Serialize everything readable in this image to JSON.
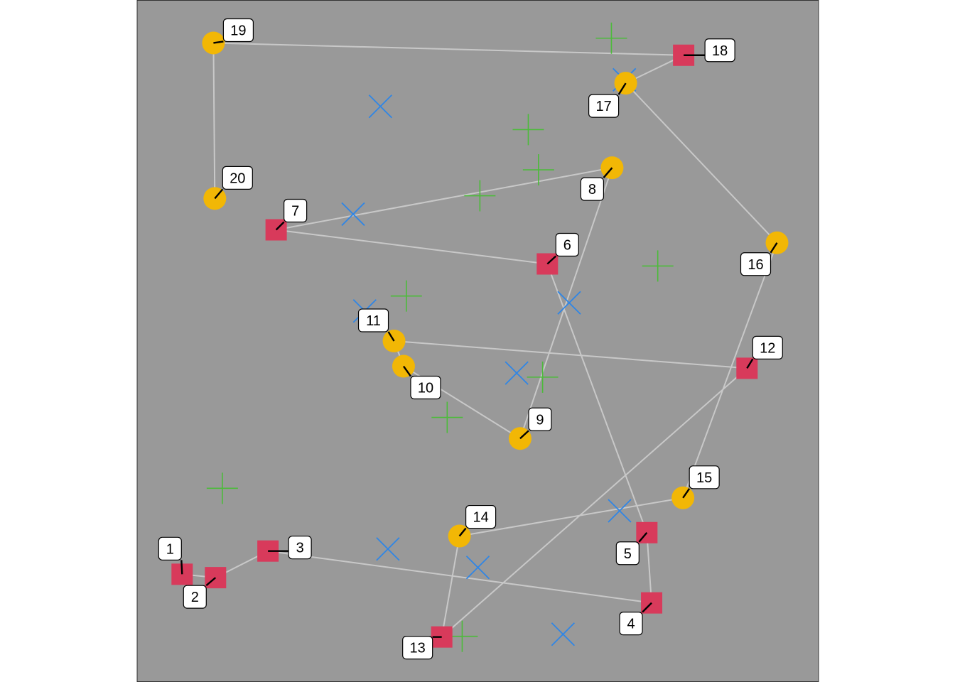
{
  "chart_data": {
    "type": "scatter",
    "title": "",
    "xlabel": "",
    "ylabel": "",
    "xlim": [
      0,
      1
    ],
    "ylim": [
      0,
      1
    ],
    "grid": false,
    "legend": "none",
    "colors": {
      "panel": "#999999",
      "border": "#333333",
      "path": "#c8c8c8",
      "square": "#d83a5b",
      "circle": "#f2b705",
      "plus": "#4cbb3a",
      "cross": "#2f86e6",
      "label_bg": "#ffffff"
    },
    "path_points": [
      {
        "label": "1",
        "shape": "square",
        "x": 0.066,
        "y": 0.158
      },
      {
        "label": "2",
        "shape": "square",
        "x": 0.115,
        "y": 0.153
      },
      {
        "label": "3",
        "shape": "square",
        "x": 0.192,
        "y": 0.192
      },
      {
        "label": "4",
        "shape": "square",
        "x": 0.755,
        "y": 0.116
      },
      {
        "label": "5",
        "shape": "square",
        "x": 0.748,
        "y": 0.219
      },
      {
        "label": "6",
        "shape": "square",
        "x": 0.602,
        "y": 0.613
      },
      {
        "label": "7",
        "shape": "square",
        "x": 0.204,
        "y": 0.663
      },
      {
        "label": "8",
        "shape": "circle",
        "x": 0.697,
        "y": 0.754
      },
      {
        "label": "9",
        "shape": "circle",
        "x": 0.562,
        "y": 0.357
      },
      {
        "label": "10",
        "shape": "circle",
        "x": 0.391,
        "y": 0.463
      },
      {
        "label": "11",
        "shape": "circle",
        "x": 0.377,
        "y": 0.5
      },
      {
        "label": "12",
        "shape": "square",
        "x": 0.895,
        "y": 0.46
      },
      {
        "label": "13",
        "shape": "square",
        "x": 0.447,
        "y": 0.066
      },
      {
        "label": "14",
        "shape": "circle",
        "x": 0.473,
        "y": 0.214
      },
      {
        "label": "15",
        "shape": "circle",
        "x": 0.801,
        "y": 0.27
      },
      {
        "label": "16",
        "shape": "circle",
        "x": 0.939,
        "y": 0.644
      },
      {
        "label": "17",
        "shape": "circle",
        "x": 0.717,
        "y": 0.878
      },
      {
        "label": "18",
        "shape": "square",
        "x": 0.802,
        "y": 0.919
      },
      {
        "label": "19",
        "shape": "circle",
        "x": 0.112,
        "y": 0.937
      },
      {
        "label": "20",
        "shape": "circle",
        "x": 0.114,
        "y": 0.709
      }
    ],
    "plus_points": [
      {
        "x": 0.696,
        "y": 0.944
      },
      {
        "x": 0.574,
        "y": 0.81
      },
      {
        "x": 0.589,
        "y": 0.751
      },
      {
        "x": 0.503,
        "y": 0.713
      },
      {
        "x": 0.764,
        "y": 0.61
      },
      {
        "x": 0.395,
        "y": 0.566
      },
      {
        "x": 0.595,
        "y": 0.447
      },
      {
        "x": 0.455,
        "y": 0.388
      },
      {
        "x": 0.125,
        "y": 0.284
      },
      {
        "x": 0.477,
        "y": 0.067
      }
    ],
    "cross_points": [
      {
        "x": 0.357,
        "y": 0.844
      },
      {
        "x": 0.715,
        "y": 0.883
      },
      {
        "x": 0.317,
        "y": 0.686
      },
      {
        "x": 0.634,
        "y": 0.556
      },
      {
        "x": 0.334,
        "y": 0.544
      },
      {
        "x": 0.557,
        "y": 0.453
      },
      {
        "x": 0.708,
        "y": 0.251
      },
      {
        "x": 0.368,
        "y": 0.195
      },
      {
        "x": 0.5,
        "y": 0.168
      },
      {
        "x": 0.625,
        "y": 0.07
      }
    ]
  }
}
